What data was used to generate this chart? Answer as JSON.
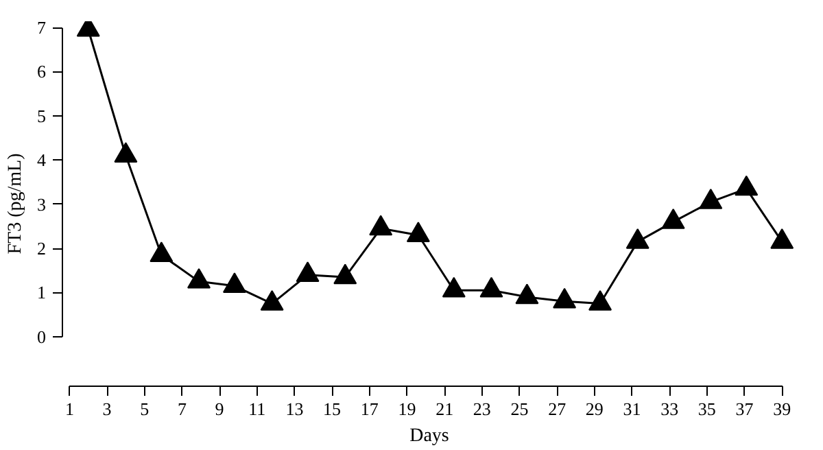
{
  "chart_data": {
    "type": "line",
    "xlabel": "Days",
    "ylabel": "FT3 (pg/mL)",
    "x": [
      2,
      4,
      5.9,
      7.9,
      9.8,
      11.8,
      13.7,
      15.7,
      17.6,
      19.6,
      21.5,
      23.5,
      25.4,
      27.4,
      29.3,
      31.3,
      33.2,
      35.2,
      37.1,
      39
    ],
    "series": [
      {
        "color": "#000000",
        "values": [
          6.95,
          4.1,
          1.85,
          1.25,
          1.15,
          0.75,
          1.4,
          1.35,
          2.45,
          2.3,
          1.05,
          1.05,
          0.9,
          0.8,
          0.75,
          2.15,
          2.6,
          3.05,
          3.35,
          2.15
        ]
      }
    ],
    "xlim": [
      1,
      39
    ],
    "xticks": [
      1,
      3,
      5,
      7,
      9,
      11,
      13,
      15,
      17,
      19,
      21,
      23,
      25,
      27,
      29,
      31,
      33,
      35,
      37,
      39
    ],
    "ylim": [
      0,
      7
    ],
    "yticks": [
      0,
      1,
      2,
      3,
      4,
      5,
      6,
      7
    ],
    "grid": false,
    "marker": "triangle",
    "line_style": "solid"
  }
}
